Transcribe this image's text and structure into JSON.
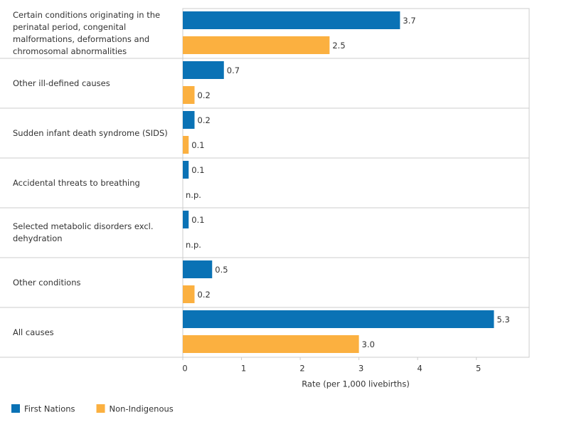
{
  "chart_data": {
    "type": "bar",
    "orientation": "horizontal",
    "categories": [
      "Certain conditions originating in the perinatal period, congenital malformations, deformations and chromosomal abnormalities",
      "Other ill-defined causes",
      "Sudden infant death syndrome (SIDS)",
      "Accidental threats to breathing",
      "Selected metabolic disorders excl. dehydration",
      "Other conditions",
      "All causes"
    ],
    "series": [
      {
        "name": "First Nations",
        "color": "#0a72b5",
        "values": [
          3.7,
          0.7,
          0.2,
          0.1,
          0.1,
          0.5,
          5.3
        ]
      },
      {
        "name": "Non-Indigenous",
        "color": "#fbb040",
        "values": [
          2.5,
          0.2,
          0.1,
          null,
          null,
          0.2,
          3.0
        ],
        "value_labels": [
          "2.5",
          "0.2",
          "0.1",
          "n.p.",
          "n.p.",
          "0.2",
          "3.0"
        ]
      }
    ],
    "x_label": "Rate (per 1,000 livebirths)",
    "xlim": [
      0,
      5.9
    ],
    "xticks": [
      0,
      1,
      2,
      3,
      4,
      5
    ]
  }
}
